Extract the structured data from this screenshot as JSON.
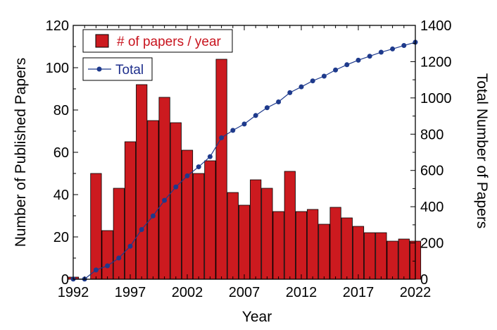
{
  "chart_data": {
    "type": "bar+line",
    "xlabel": "Year",
    "ylabel_left": "Number of Published Papers",
    "ylabel_right": "Total Number of Papers",
    "xlim": [
      1992,
      2022
    ],
    "ylim_left": [
      0,
      120
    ],
    "ylim_right": [
      0,
      1400
    ],
    "xticks": [
      1992,
      1997,
      2002,
      2007,
      2012,
      2017,
      2022
    ],
    "yticks_left": [
      0,
      20,
      40,
      60,
      80,
      100,
      120
    ],
    "yticks_right": [
      0,
      200,
      400,
      600,
      800,
      1000,
      1200,
      1400
    ],
    "grid": false,
    "legend_placement": "top-left",
    "years": [
      1992,
      1993,
      1994,
      1995,
      1996,
      1997,
      1998,
      1999,
      2000,
      2001,
      2002,
      2003,
      2004,
      2005,
      2006,
      2007,
      2008,
      2009,
      2010,
      2011,
      2012,
      2013,
      2014,
      2015,
      2016,
      2017,
      2018,
      2019,
      2020,
      2021,
      2022
    ],
    "series": [
      {
        "name": "# of papers / year",
        "kind": "bar",
        "axis": "left",
        "color": "#cc1a1f",
        "values": [
          1,
          0,
          50,
          23,
          43,
          65,
          92,
          75,
          86,
          74,
          61,
          50,
          56,
          104,
          41,
          35,
          47,
          43,
          32,
          51,
          32,
          33,
          26,
          34,
          29,
          25,
          22,
          22,
          18,
          19,
          18
        ]
      },
      {
        "name": "Total",
        "kind": "line",
        "axis": "right",
        "color": "#1e3a8c",
        "values": [
          1,
          1,
          51,
          74,
          117,
          182,
          274,
          349,
          435,
          509,
          570,
          620,
          676,
          780,
          821,
          856,
          903,
          946,
          978,
          1029,
          1061,
          1094,
          1120,
          1154,
          1183,
          1208,
          1230,
          1252,
          1270,
          1289,
          1307
        ]
      }
    ]
  }
}
